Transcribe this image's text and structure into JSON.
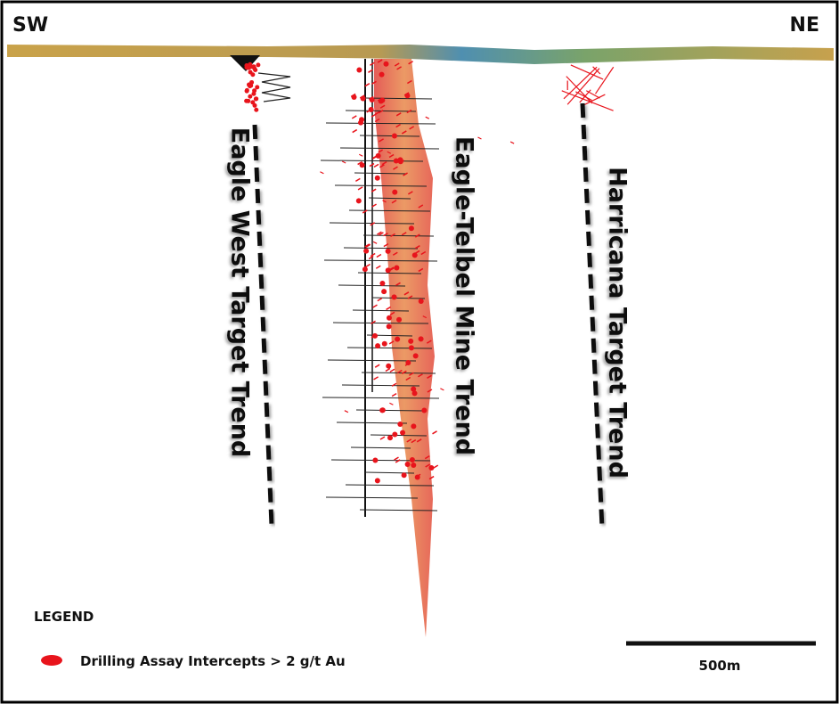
{
  "header": {
    "left": "SW",
    "right": "NE"
  },
  "trends": [
    {
      "label": "Eagle West Target Trend"
    },
    {
      "label": "Eagle-Telbel Mine Trend"
    },
    {
      "label": "Harricana Target Trend"
    }
  ],
  "legend": {
    "title": "LEGEND",
    "items": [
      {
        "label": "Drilling Assay Intercepts > 2 g/t Au"
      }
    ]
  },
  "scale_bar": {
    "label": "500m"
  }
}
